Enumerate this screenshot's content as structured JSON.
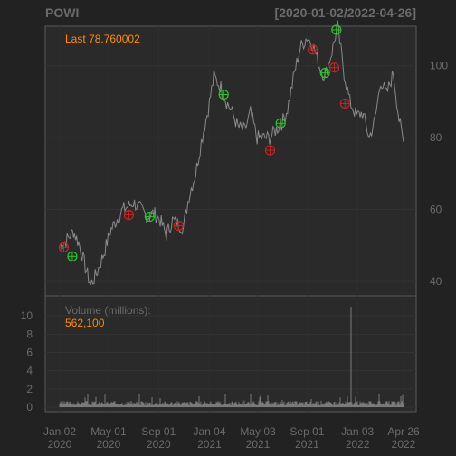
{
  "chart_data": [
    {
      "type": "line",
      "panel": "price",
      "title": "POWI",
      "date_range": "[2020-01-02/2022-04-26]",
      "annotation": "Last 78.760002",
      "ylim": [
        36,
        111
      ],
      "y_ticks": [
        40,
        60,
        80,
        100
      ],
      "grid": true,
      "colors": {
        "line": "#8a8a8a",
        "buy": "#22cc22",
        "sell": "#cc2222",
        "accent": "#ff8c00"
      },
      "series": [
        {
          "x": [
            "2020-01-02",
            "2020-01-15",
            "2020-02-05",
            "2020-02-20",
            "2020-03-05",
            "2020-03-18",
            "2020-04-01",
            "2020-04-20",
            "2020-05-05",
            "2020-05-20",
            "2020-06-05",
            "2020-06-20",
            "2020-07-01",
            "2020-07-20",
            "2020-08-05",
            "2020-08-20",
            "2020-09-05",
            "2020-09-20",
            "2020-10-05",
            "2020-10-20",
            "2020-11-01",
            "2020-11-15",
            "2020-12-01",
            "2020-12-15",
            "2021-01-01",
            "2021-01-15",
            "2021-02-01",
            "2021-02-15",
            "2021-03-01",
            "2021-03-15",
            "2021-04-01",
            "2021-04-15",
            "2021-05-01",
            "2021-05-15",
            "2021-06-01",
            "2021-06-15",
            "2021-07-01",
            "2021-07-15",
            "2021-08-01",
            "2021-08-15",
            "2021-09-01",
            "2021-09-15",
            "2021-10-01",
            "2021-10-15",
            "2021-11-01",
            "2021-11-15",
            "2021-12-01",
            "2021-12-15",
            "2022-01-01",
            "2022-01-15",
            "2022-02-01",
            "2022-02-15",
            "2022-03-01",
            "2022-03-15",
            "2022-04-01",
            "2022-04-15",
            "2022-04-26"
          ],
          "y": [
            50,
            51,
            54,
            50,
            44,
            39,
            42,
            48,
            54,
            57,
            60,
            61,
            62,
            60,
            58,
            59,
            57,
            53,
            57,
            56,
            55,
            64,
            70,
            79,
            88,
            97,
            94,
            90,
            87,
            83,
            82,
            87,
            80,
            80,
            80,
            82,
            84,
            88,
            98,
            105,
            108,
            106,
            100,
            97,
            104,
            111,
            98,
            90,
            86,
            87,
            80,
            85,
            96,
            92,
            98,
            85,
            78.76
          ]
        }
      ],
      "signals": [
        {
          "x": "2020-01-12",
          "y": 49.5,
          "type": "sell"
        },
        {
          "x": "2020-02-02",
          "y": 47,
          "type": "buy"
        },
        {
          "x": "2020-06-20",
          "y": 58.5,
          "type": "sell"
        },
        {
          "x": "2020-08-10",
          "y": 58,
          "type": "buy"
        },
        {
          "x": "2020-10-20",
          "y": 55.5,
          "type": "sell"
        },
        {
          "x": "2021-02-08",
          "y": 92,
          "type": "buy"
        },
        {
          "x": "2021-06-02",
          "y": 76.5,
          "type": "sell"
        },
        {
          "x": "2021-06-28",
          "y": 84,
          "type": "buy"
        },
        {
          "x": "2021-09-15",
          "y": 104.5,
          "type": "sell"
        },
        {
          "x": "2021-10-15",
          "y": 98,
          "type": "buy"
        },
        {
          "x": "2021-11-07",
          "y": 99.5,
          "type": "sell"
        },
        {
          "x": "2021-11-12",
          "y": 110,
          "type": "buy"
        },
        {
          "x": "2021-12-03",
          "y": 89.5,
          "type": "sell"
        }
      ]
    },
    {
      "type": "bar",
      "panel": "volume",
      "label": "Volume (millions):",
      "value": "562,100",
      "ylim": [
        0,
        12
      ],
      "y_ticks": [
        0,
        2,
        4,
        6,
        8,
        10
      ],
      "baseline": 0.4,
      "spike": {
        "x": "2021-12-18",
        "y": 11
      }
    }
  ],
  "x_axis": {
    "start": "2020-01-02",
    "end": "2022-04-26",
    "ticks": [
      {
        "date": "2020-01-02",
        "line1": "Jan 02",
        "line2": "2020"
      },
      {
        "date": "2020-05-01",
        "line1": "May 01",
        "line2": "2020"
      },
      {
        "date": "2020-09-01",
        "line1": "Sep 01",
        "line2": "2020"
      },
      {
        "date": "2021-01-04",
        "line1": "Jan 04",
        "line2": "2021"
      },
      {
        "date": "2021-05-03",
        "line1": "May 03",
        "line2": "2021"
      },
      {
        "date": "2021-09-01",
        "line1": "Sep 01",
        "line2": "2021"
      },
      {
        "date": "2022-01-03",
        "line1": "Jan 03",
        "line2": "2022"
      },
      {
        "date": "2022-04-26",
        "line1": "Apr 26",
        "line2": "2022"
      }
    ]
  }
}
